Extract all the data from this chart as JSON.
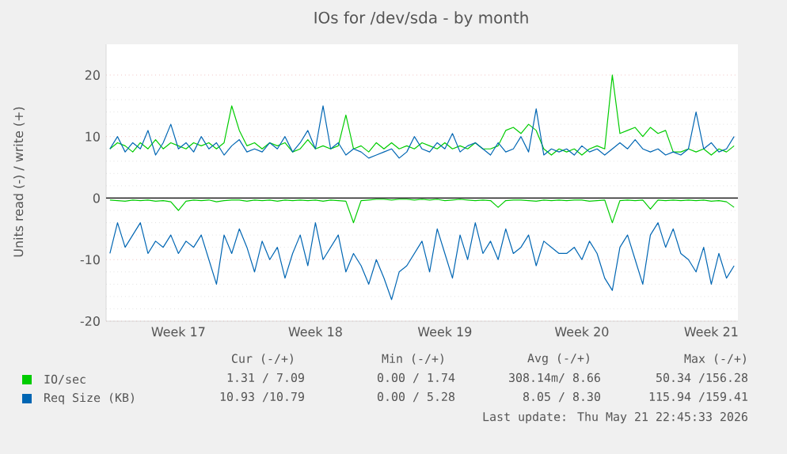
{
  "chart_data": {
    "type": "line",
    "title": "IOs for /dev/sda - by month",
    "ylabel": "Units read (-) / write (+)",
    "categories": [
      null,
      null,
      null,
      null,
      null,
      null,
      null,
      null,
      null,
      "Week 17",
      null,
      null,
      null,
      null,
      null,
      null,
      null,
      null,
      null,
      null,
      null,
      null,
      null,
      null,
      null,
      null,
      null,
      "Week 18",
      null,
      null,
      null,
      null,
      null,
      null,
      null,
      null,
      null,
      null,
      null,
      null,
      null,
      null,
      null,
      null,
      "Week 19",
      null,
      null,
      null,
      null,
      null,
      null,
      null,
      null,
      null,
      null,
      null,
      null,
      null,
      null,
      null,
      null,
      null,
      "Week 20",
      null,
      null,
      null,
      null,
      null,
      null,
      null,
      null,
      null,
      null,
      null,
      null,
      null,
      null,
      null,
      null,
      "Week 21",
      null,
      null,
      null
    ],
    "ylim": [
      -20,
      25
    ],
    "yticks": [
      -20,
      -10,
      0,
      10,
      20
    ],
    "grid": "y",
    "legend": "bottom",
    "ref_lines": [
      {
        "axis": "y",
        "value": 0,
        "color": "#000000"
      }
    ],
    "series": [
      {
        "name": "IO/sec",
        "color": "#00cc00",
        "values": [
          8,
          9,
          8.5,
          7.5,
          9,
          8,
          9.5,
          8,
          9,
          8.5,
          8,
          9,
          8.5,
          9,
          8,
          9,
          15,
          11,
          8.5,
          9,
          8,
          9,
          8.5,
          9,
          7.5,
          8,
          9.5,
          8,
          8.5,
          8,
          8.5,
          13.5,
          8,
          8.5,
          7.5,
          9,
          8,
          9,
          8,
          8.5,
          8,
          9,
          8.5,
          8,
          9,
          8,
          8.5,
          8,
          9,
          8,
          8,
          8.5,
          11,
          11.5,
          10.5,
          12,
          11,
          8,
          7,
          8,
          7.5,
          8,
          7,
          8,
          8.5,
          8,
          20,
          10.5,
          11,
          11.5,
          10,
          11.5,
          10.5,
          11,
          7.5,
          7.5,
          8,
          7.5,
          8,
          7,
          8,
          7.5,
          8.5
        ]
      },
      {
        "color": "#00cc00",
        "values": [
          -0.3,
          -0.4,
          -0.5,
          -0.3,
          -0.4,
          -0.3,
          -0.5,
          -0.4,
          -0.6,
          -2,
          -0.5,
          -0.3,
          -0.4,
          -0.3,
          -0.6,
          -0.4,
          -0.3,
          -0.3,
          -0.5,
          -0.3,
          -0.4,
          -0.3,
          -0.5,
          -0.3,
          -0.4,
          -0.3,
          -0.4,
          -0.3,
          -0.5,
          -0.3,
          -0.4,
          -0.5,
          -4,
          -0.4,
          -0.3,
          -0.2,
          -0.2,
          -0.3,
          -0.2,
          -0.2,
          -0.3,
          -0.2,
          -0.3,
          -0.2,
          -0.4,
          -0.3,
          -0.2,
          -0.3,
          -0.4,
          -0.3,
          -0.4,
          -1.5,
          -0.4,
          -0.3,
          -0.3,
          -0.4,
          -0.5,
          -0.3,
          -0.4,
          -0.3,
          -0.4,
          -0.3,
          -0.3,
          -0.5,
          -0.4,
          -0.3,
          -4,
          -0.4,
          -0.3,
          -0.4,
          -0.3,
          -1.8,
          -0.3,
          -0.4,
          -0.3,
          -0.4,
          -0.3,
          -0.4,
          -0.3,
          -0.5,
          -0.4,
          -0.6,
          -1.5
        ]
      },
      {
        "name": "Req Size (KB)",
        "color": "#0066b3",
        "values": [
          8,
          10,
          7.5,
          9,
          8,
          11,
          7,
          9,
          12,
          8,
          9,
          7.5,
          10,
          8,
          9,
          7,
          8.5,
          9.5,
          7.5,
          8,
          7.5,
          9,
          8,
          10,
          7.5,
          9,
          11,
          8,
          15,
          8,
          9,
          7,
          8,
          7.5,
          6.5,
          7,
          7.5,
          8,
          6.5,
          7.5,
          10,
          8,
          7.5,
          9,
          8,
          10.5,
          7.5,
          8.5,
          9,
          8,
          7,
          9,
          7.5,
          8,
          10,
          7.5,
          14.5,
          7,
          8,
          7.5,
          8,
          7,
          8.5,
          7.5,
          8,
          7,
          8,
          9,
          8,
          9.5,
          8,
          7.5,
          8,
          7,
          7.5,
          7,
          8,
          14,
          8,
          9,
          7.5,
          8,
          10
        ]
      },
      {
        "color": "#0066b3",
        "values": [
          -9,
          -4,
          -8,
          -6,
          -4,
          -9,
          -7,
          -8,
          -6,
          -9,
          -7,
          -8,
          -6,
          -10,
          -14,
          -6,
          -9,
          -5,
          -8,
          -12,
          -7,
          -10,
          -8,
          -13,
          -9,
          -6,
          -11,
          -4,
          -10,
          -8,
          -6,
          -12,
          -9,
          -11,
          -14,
          -10,
          -13,
          -16.5,
          -12,
          -11,
          -9,
          -7,
          -12,
          -5,
          -9,
          -13,
          -6,
          -10,
          -4,
          -9,
          -7,
          -10,
          -5,
          -9,
          -8,
          -6,
          -11,
          -7,
          -8,
          -9,
          -9,
          -8,
          -10,
          -7,
          -9,
          -13,
          -15,
          -8,
          -6,
          -10,
          -14,
          -6,
          -4,
          -8,
          -5,
          -9,
          -10,
          -12,
          -8,
          -14,
          -9,
          -13,
          -11
        ]
      }
    ],
    "annotations": [
      "Cur (-/+)",
      "Min (-/+)",
      "Avg (-/+)",
      "Max (-/+)",
      "1.31 / 7.09",
      "0.00 / 1.74",
      "308.14m/ 8.66",
      "50.34 /156.28",
      "10.93 /10.79",
      "0.00 / 5.28",
      "8.05 / 8.30",
      "115.94 /159.41",
      "Last update: Thu May 21 22:45:33 2026"
    ]
  }
}
